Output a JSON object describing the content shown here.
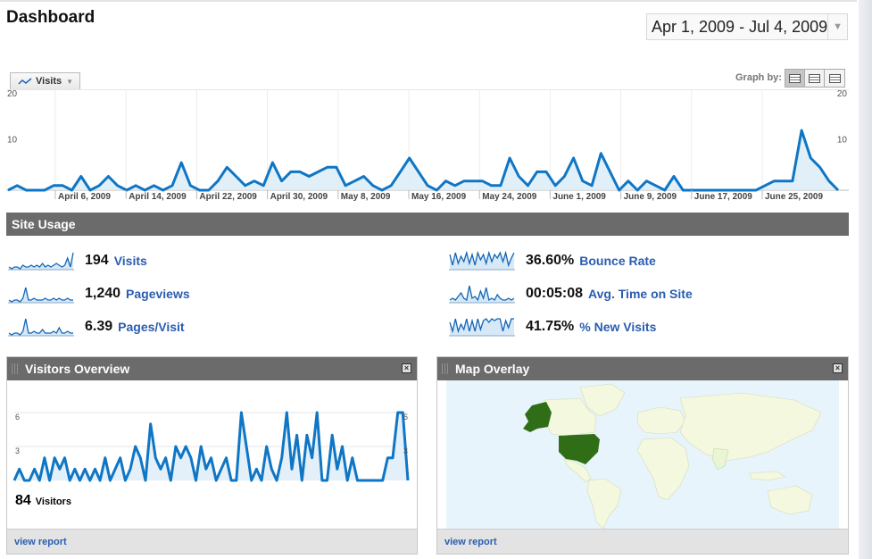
{
  "page": {
    "title": "Dashboard"
  },
  "date_range": {
    "label": "Apr 1, 2009 - Jul 4, 2009"
  },
  "graph_by": {
    "label": "Graph by:",
    "options": [
      "day",
      "week",
      "month"
    ],
    "selected": "day"
  },
  "metric_selector": {
    "label": "Visits"
  },
  "chart_data": {
    "type": "area",
    "title": "",
    "series": [
      {
        "name": "Visits",
        "values": [
          0,
          1,
          0,
          0,
          0,
          1,
          1,
          0,
          3,
          0,
          1,
          3,
          1,
          0,
          1,
          0,
          1,
          0,
          1,
          6,
          1,
          0,
          0,
          2,
          5,
          3,
          1,
          2,
          1,
          6,
          2,
          4,
          4,
          3,
          4,
          5,
          5,
          1,
          2,
          3,
          1,
          0,
          1,
          4,
          7,
          4,
          1,
          0,
          2,
          1,
          2,
          2,
          2,
          1,
          1,
          7,
          3,
          1,
          4,
          4,
          1,
          3,
          7,
          2,
          1,
          8,
          4,
          0,
          2,
          0,
          2,
          1,
          0,
          3,
          0,
          0,
          0,
          0,
          0,
          0,
          0,
          0,
          0,
          1,
          2,
          2,
          2,
          13,
          7,
          5,
          2,
          0
        ]
      }
    ],
    "x_tick_labels": [
      "April 6, 2009",
      "April 14, 2009",
      "April 22, 2009",
      "April 30, 2009",
      "May 8, 2009",
      "May 16, 2009",
      "May 24, 2009",
      "June 1, 2009",
      "June 9, 2009",
      "June 17, 2009",
      "June 25, 2009"
    ],
    "y_tick_labels": [
      "10",
      "20"
    ],
    "ylim": [
      0,
      20
    ],
    "grid": true,
    "color": "#0f76c5"
  },
  "site_usage": {
    "header": "Site Usage",
    "metrics": [
      {
        "value": "194",
        "label": "Visits"
      },
      {
        "value": "1,240",
        "label": "Pageviews"
      },
      {
        "value": "6.39",
        "label": "Pages/Visit"
      },
      {
        "value": "36.60%",
        "label": "Bounce Rate"
      },
      {
        "value": "00:05:08",
        "label": "Avg. Time on Site"
      },
      {
        "value": "41.75%",
        "label": "% New Visits"
      }
    ]
  },
  "visitors_overview": {
    "title": "Visitors Overview",
    "count": "84",
    "count_label": "Visitors",
    "y_tick_labels": [
      "3",
      "6"
    ],
    "ylim": [
      0,
      6
    ],
    "values": [
      0,
      1,
      0,
      0,
      1,
      0,
      2,
      0,
      2,
      1,
      2,
      0,
      1,
      0,
      1,
      0,
      1,
      0,
      2,
      0,
      1,
      2,
      0,
      1,
      3,
      2,
      0,
      5,
      2,
      1,
      2,
      0,
      3,
      2,
      3,
      2,
      0,
      3,
      1,
      2,
      0,
      1,
      2,
      0,
      0,
      6,
      3,
      0,
      1,
      0,
      3,
      1,
      0,
      2,
      6,
      1,
      4,
      0,
      4,
      2,
      6,
      0,
      0,
      4,
      1,
      3,
      0,
      2,
      0,
      0,
      0,
      0,
      0,
      0,
      2,
      2,
      6,
      6,
      0
    ],
    "footer_link": "view report"
  },
  "map_overlay": {
    "title": "Map Overlay",
    "footer_link": "view report",
    "colors": {
      "ocean": "#e8f4fb",
      "land": "#f3f8df",
      "highlight": "#2f6e16"
    }
  }
}
